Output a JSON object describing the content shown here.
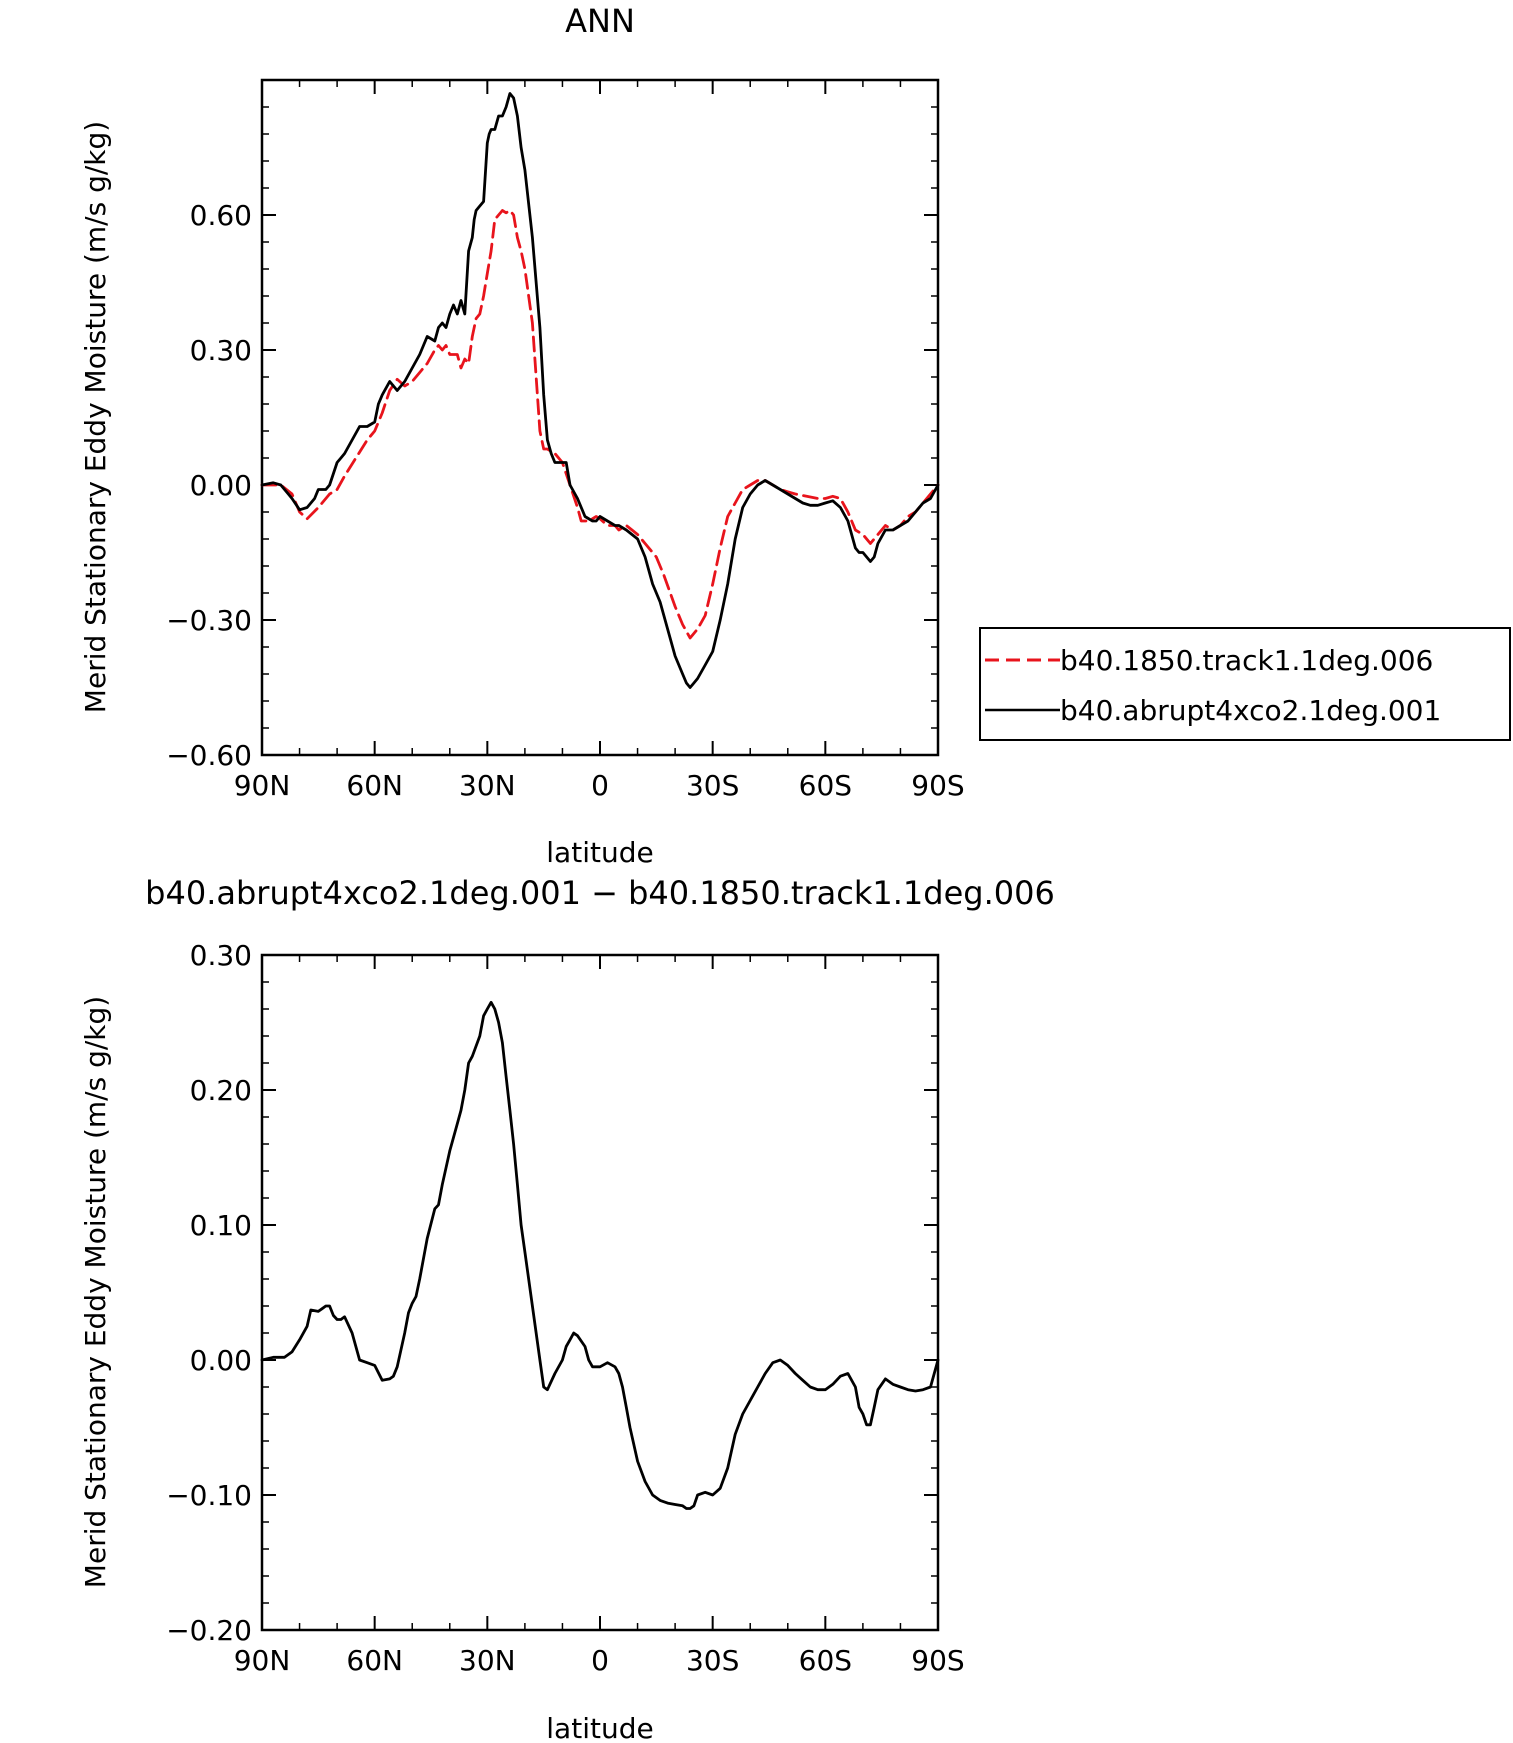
{
  "chart_data": [
    {
      "type": "line",
      "title": "ANN",
      "xlabel": "latitude",
      "ylabel": "Merid Stationary Eddy Moisture (m/s g/kg)",
      "xlim": [
        90,
        -90
      ],
      "ylim": [
        -0.6,
        0.9
      ],
      "x_ticks": [
        90,
        60,
        30,
        0,
        -30,
        -60,
        -90
      ],
      "x_tick_labels": [
        "90N",
        "60N",
        "30N",
        "0",
        "30S",
        "60S",
        "90S"
      ],
      "y_ticks": [
        -0.6,
        -0.3,
        0.0,
        0.3,
        0.6
      ],
      "y_tick_labels": [
        "−0.60",
        "−0.30",
        "0.00",
        "0.30",
        "0.60"
      ],
      "grid": false,
      "legend": {
        "placement": "right",
        "entries": [
          "b40.1850.track1.1deg.006",
          "b40.abrupt4xco2.1deg.001"
        ]
      },
      "series": [
        {
          "name": "b40.1850.track1.1deg.006",
          "color": "#e8141c",
          "dash": "dashed",
          "x": [
            90,
            85,
            82,
            80,
            78,
            75,
            72,
            70,
            68,
            65,
            62,
            60,
            58,
            56,
            54,
            52,
            50,
            48,
            46,
            44,
            43,
            42,
            41,
            40,
            38,
            37,
            36,
            35,
            34,
            33,
            32,
            31,
            30,
            29,
            28,
            27,
            26,
            25,
            24,
            23,
            22,
            21,
            20,
            18,
            16,
            15,
            14,
            12,
            10,
            8,
            6,
            5,
            3,
            1,
            0,
            -2,
            -4,
            -5,
            -7,
            -10,
            -12,
            -15,
            -17,
            -20,
            -22,
            -24,
            -26,
            -28,
            -30,
            -32,
            -34,
            -36,
            -38,
            -40,
            -42,
            -44,
            -46,
            -48,
            -50,
            -52,
            -55,
            -58,
            -60,
            -62,
            -64,
            -66,
            -68,
            -70,
            -72,
            -74,
            -76,
            -78,
            -80,
            -82,
            -84,
            -86,
            -88,
            -90
          ],
          "y": [
            0.0,
            0.0,
            -0.02,
            -0.06,
            -0.075,
            -0.05,
            -0.02,
            -0.01,
            0.02,
            0.06,
            0.1,
            0.12,
            0.16,
            0.21,
            0.235,
            0.22,
            0.23,
            0.25,
            0.27,
            0.3,
            0.31,
            0.3,
            0.31,
            0.29,
            0.29,
            0.26,
            0.28,
            0.27,
            0.33,
            0.37,
            0.38,
            0.42,
            0.47,
            0.52,
            0.59,
            0.6,
            0.61,
            0.605,
            0.61,
            0.6,
            0.55,
            0.52,
            0.48,
            0.36,
            0.12,
            0.08,
            0.08,
            0.07,
            0.05,
            0.0,
            -0.05,
            -0.08,
            -0.08,
            -0.07,
            -0.075,
            -0.09,
            -0.09,
            -0.1,
            -0.09,
            -0.11,
            -0.13,
            -0.16,
            -0.2,
            -0.27,
            -0.31,
            -0.34,
            -0.32,
            -0.29,
            -0.22,
            -0.14,
            -0.07,
            -0.04,
            -0.01,
            0.0,
            0.01,
            0.01,
            0.0,
            -0.01,
            -0.015,
            -0.02,
            -0.025,
            -0.03,
            -0.03,
            -0.025,
            -0.03,
            -0.06,
            -0.1,
            -0.11,
            -0.13,
            -0.11,
            -0.09,
            -0.1,
            -0.09,
            -0.07,
            -0.06,
            -0.04,
            -0.02,
            0.0
          ]
        },
        {
          "name": "b40.abrupt4xco2.1deg.001",
          "color": "#000000",
          "dash": "solid",
          "x": [
            90,
            87,
            85,
            83,
            82,
            80,
            78,
            76,
            75,
            73,
            72,
            70,
            69,
            68,
            66,
            64,
            62,
            60,
            59,
            58,
            56,
            54,
            52,
            50,
            48,
            46,
            44,
            43,
            42,
            41,
            40,
            39,
            38,
            37,
            36,
            35,
            34,
            33.5,
            33,
            32,
            31,
            30,
            29.5,
            29,
            28,
            27,
            26,
            25,
            24,
            23,
            22,
            21,
            20,
            18,
            16,
            15,
            14,
            13,
            12,
            10,
            9,
            8,
            6,
            4,
            2,
            1,
            0,
            -2,
            -4,
            -5,
            -7,
            -10,
            -12,
            -14,
            -16,
            -18,
            -20,
            -22,
            -23,
            -24,
            -25,
            -26,
            -28,
            -30,
            -32,
            -34,
            -36,
            -38,
            -40,
            -42,
            -44,
            -46,
            -48,
            -50,
            -52,
            -54,
            -56,
            -58,
            -60,
            -62,
            -64,
            -66,
            -68,
            -69,
            -70,
            -72,
            -73,
            -74,
            -76,
            -78,
            -80,
            -82,
            -84,
            -86,
            -88,
            -90
          ],
          "y": [
            0.0,
            0.005,
            0.0,
            -0.02,
            -0.03,
            -0.055,
            -0.05,
            -0.03,
            -0.01,
            -0.01,
            0.0,
            0.05,
            0.06,
            0.07,
            0.1,
            0.13,
            0.13,
            0.14,
            0.18,
            0.2,
            0.23,
            0.21,
            0.23,
            0.26,
            0.29,
            0.33,
            0.32,
            0.35,
            0.36,
            0.35,
            0.38,
            0.4,
            0.38,
            0.41,
            0.38,
            0.52,
            0.55,
            0.59,
            0.61,
            0.62,
            0.63,
            0.76,
            0.78,
            0.79,
            0.79,
            0.82,
            0.82,
            0.84,
            0.87,
            0.86,
            0.82,
            0.75,
            0.7,
            0.55,
            0.35,
            0.2,
            0.1,
            0.07,
            0.05,
            0.05,
            0.05,
            0.0,
            -0.03,
            -0.07,
            -0.08,
            -0.08,
            -0.07,
            -0.08,
            -0.09,
            -0.09,
            -0.1,
            -0.12,
            -0.16,
            -0.22,
            -0.26,
            -0.32,
            -0.38,
            -0.42,
            -0.44,
            -0.45,
            -0.44,
            -0.43,
            -0.4,
            -0.37,
            -0.3,
            -0.22,
            -0.12,
            -0.05,
            -0.02,
            0.0,
            0.01,
            0.0,
            -0.01,
            -0.02,
            -0.03,
            -0.04,
            -0.045,
            -0.045,
            -0.04,
            -0.035,
            -0.05,
            -0.08,
            -0.14,
            -0.15,
            -0.15,
            -0.17,
            -0.16,
            -0.13,
            -0.1,
            -0.1,
            -0.09,
            -0.08,
            -0.06,
            -0.04,
            -0.03,
            0.0
          ]
        }
      ]
    },
    {
      "type": "line",
      "title": "b40.abrupt4xco2.1deg.001 − b40.1850.track1.1deg.006",
      "xlabel": "latitude",
      "ylabel": "Merid Stationary Eddy Moisture (m/s g/kg)",
      "xlim": [
        90,
        -90
      ],
      "ylim": [
        -0.2,
        0.3
      ],
      "x_ticks": [
        90,
        60,
        30,
        0,
        -30,
        -60,
        -90
      ],
      "x_tick_labels": [
        "90N",
        "60N",
        "30N",
        "0",
        "30S",
        "60S",
        "90S"
      ],
      "y_ticks": [
        -0.2,
        -0.1,
        0.0,
        0.1,
        0.2,
        0.3
      ],
      "y_tick_labels": [
        "−0.20",
        "−0.10",
        "0.00",
        "0.10",
        "0.20",
        "0.30"
      ],
      "grid": false,
      "series": [
        {
          "color": "#000000",
          "dash": "solid",
          "x": [
            90,
            87,
            84,
            82,
            80,
            78,
            77,
            75,
            74,
            73,
            72,
            71,
            70,
            69,
            68,
            66,
            64,
            62,
            60,
            58,
            56,
            55,
            54,
            52,
            51,
            50,
            49,
            48,
            46,
            44,
            43,
            42,
            40,
            38,
            37,
            36,
            35,
            34,
            32,
            31,
            30,
            29,
            28,
            27,
            26,
            25,
            24,
            23,
            22,
            21,
            20,
            18,
            16,
            15,
            14,
            12,
            10,
            9,
            8,
            7,
            6,
            4,
            3,
            2,
            0,
            -2,
            -4,
            -5,
            -6,
            -7,
            -8,
            -10,
            -12,
            -14,
            -16,
            -18,
            -20,
            -22,
            -23,
            -24,
            -25,
            -26,
            -28,
            -30,
            -32,
            -34,
            -36,
            -38,
            -40,
            -42,
            -44,
            -46,
            -48,
            -50,
            -52,
            -54,
            -56,
            -58,
            -60,
            -62,
            -64,
            -66,
            -68,
            -69,
            -70,
            -71,
            -72,
            -73,
            -74,
            -76,
            -78,
            -80,
            -82,
            -84,
            -86,
            -88,
            -90
          ],
          "y": [
            0.0,
            0.002,
            0.002,
            0.006,
            0.015,
            0.025,
            0.037,
            0.036,
            0.038,
            0.04,
            0.04,
            0.033,
            0.03,
            0.03,
            0.032,
            0.02,
            0.0,
            -0.002,
            -0.004,
            -0.015,
            -0.014,
            -0.012,
            -0.005,
            0.02,
            0.035,
            0.042,
            0.047,
            0.06,
            0.09,
            0.112,
            0.115,
            0.13,
            0.155,
            0.175,
            0.185,
            0.2,
            0.22,
            0.225,
            0.24,
            0.255,
            0.26,
            0.265,
            0.26,
            0.25,
            0.235,
            0.21,
            0.185,
            0.16,
            0.13,
            0.1,
            0.08,
            0.04,
            0.0,
            -0.02,
            -0.022,
            -0.01,
            0.0,
            0.01,
            0.015,
            0.02,
            0.018,
            0.01,
            0.0,
            -0.005,
            -0.005,
            -0.002,
            -0.005,
            -0.01,
            -0.02,
            -0.035,
            -0.05,
            -0.075,
            -0.09,
            -0.1,
            -0.104,
            -0.106,
            -0.107,
            -0.108,
            -0.11,
            -0.11,
            -0.108,
            -0.1,
            -0.098,
            -0.1,
            -0.095,
            -0.08,
            -0.055,
            -0.04,
            -0.03,
            -0.02,
            -0.01,
            -0.002,
            0.0,
            -0.004,
            -0.01,
            -0.015,
            -0.02,
            -0.022,
            -0.022,
            -0.018,
            -0.012,
            -0.01,
            -0.02,
            -0.035,
            -0.04,
            -0.048,
            -0.048,
            -0.035,
            -0.022,
            -0.014,
            -0.018,
            -0.02,
            -0.022,
            -0.023,
            -0.022,
            -0.02,
            0.0
          ]
        }
      ]
    }
  ]
}
